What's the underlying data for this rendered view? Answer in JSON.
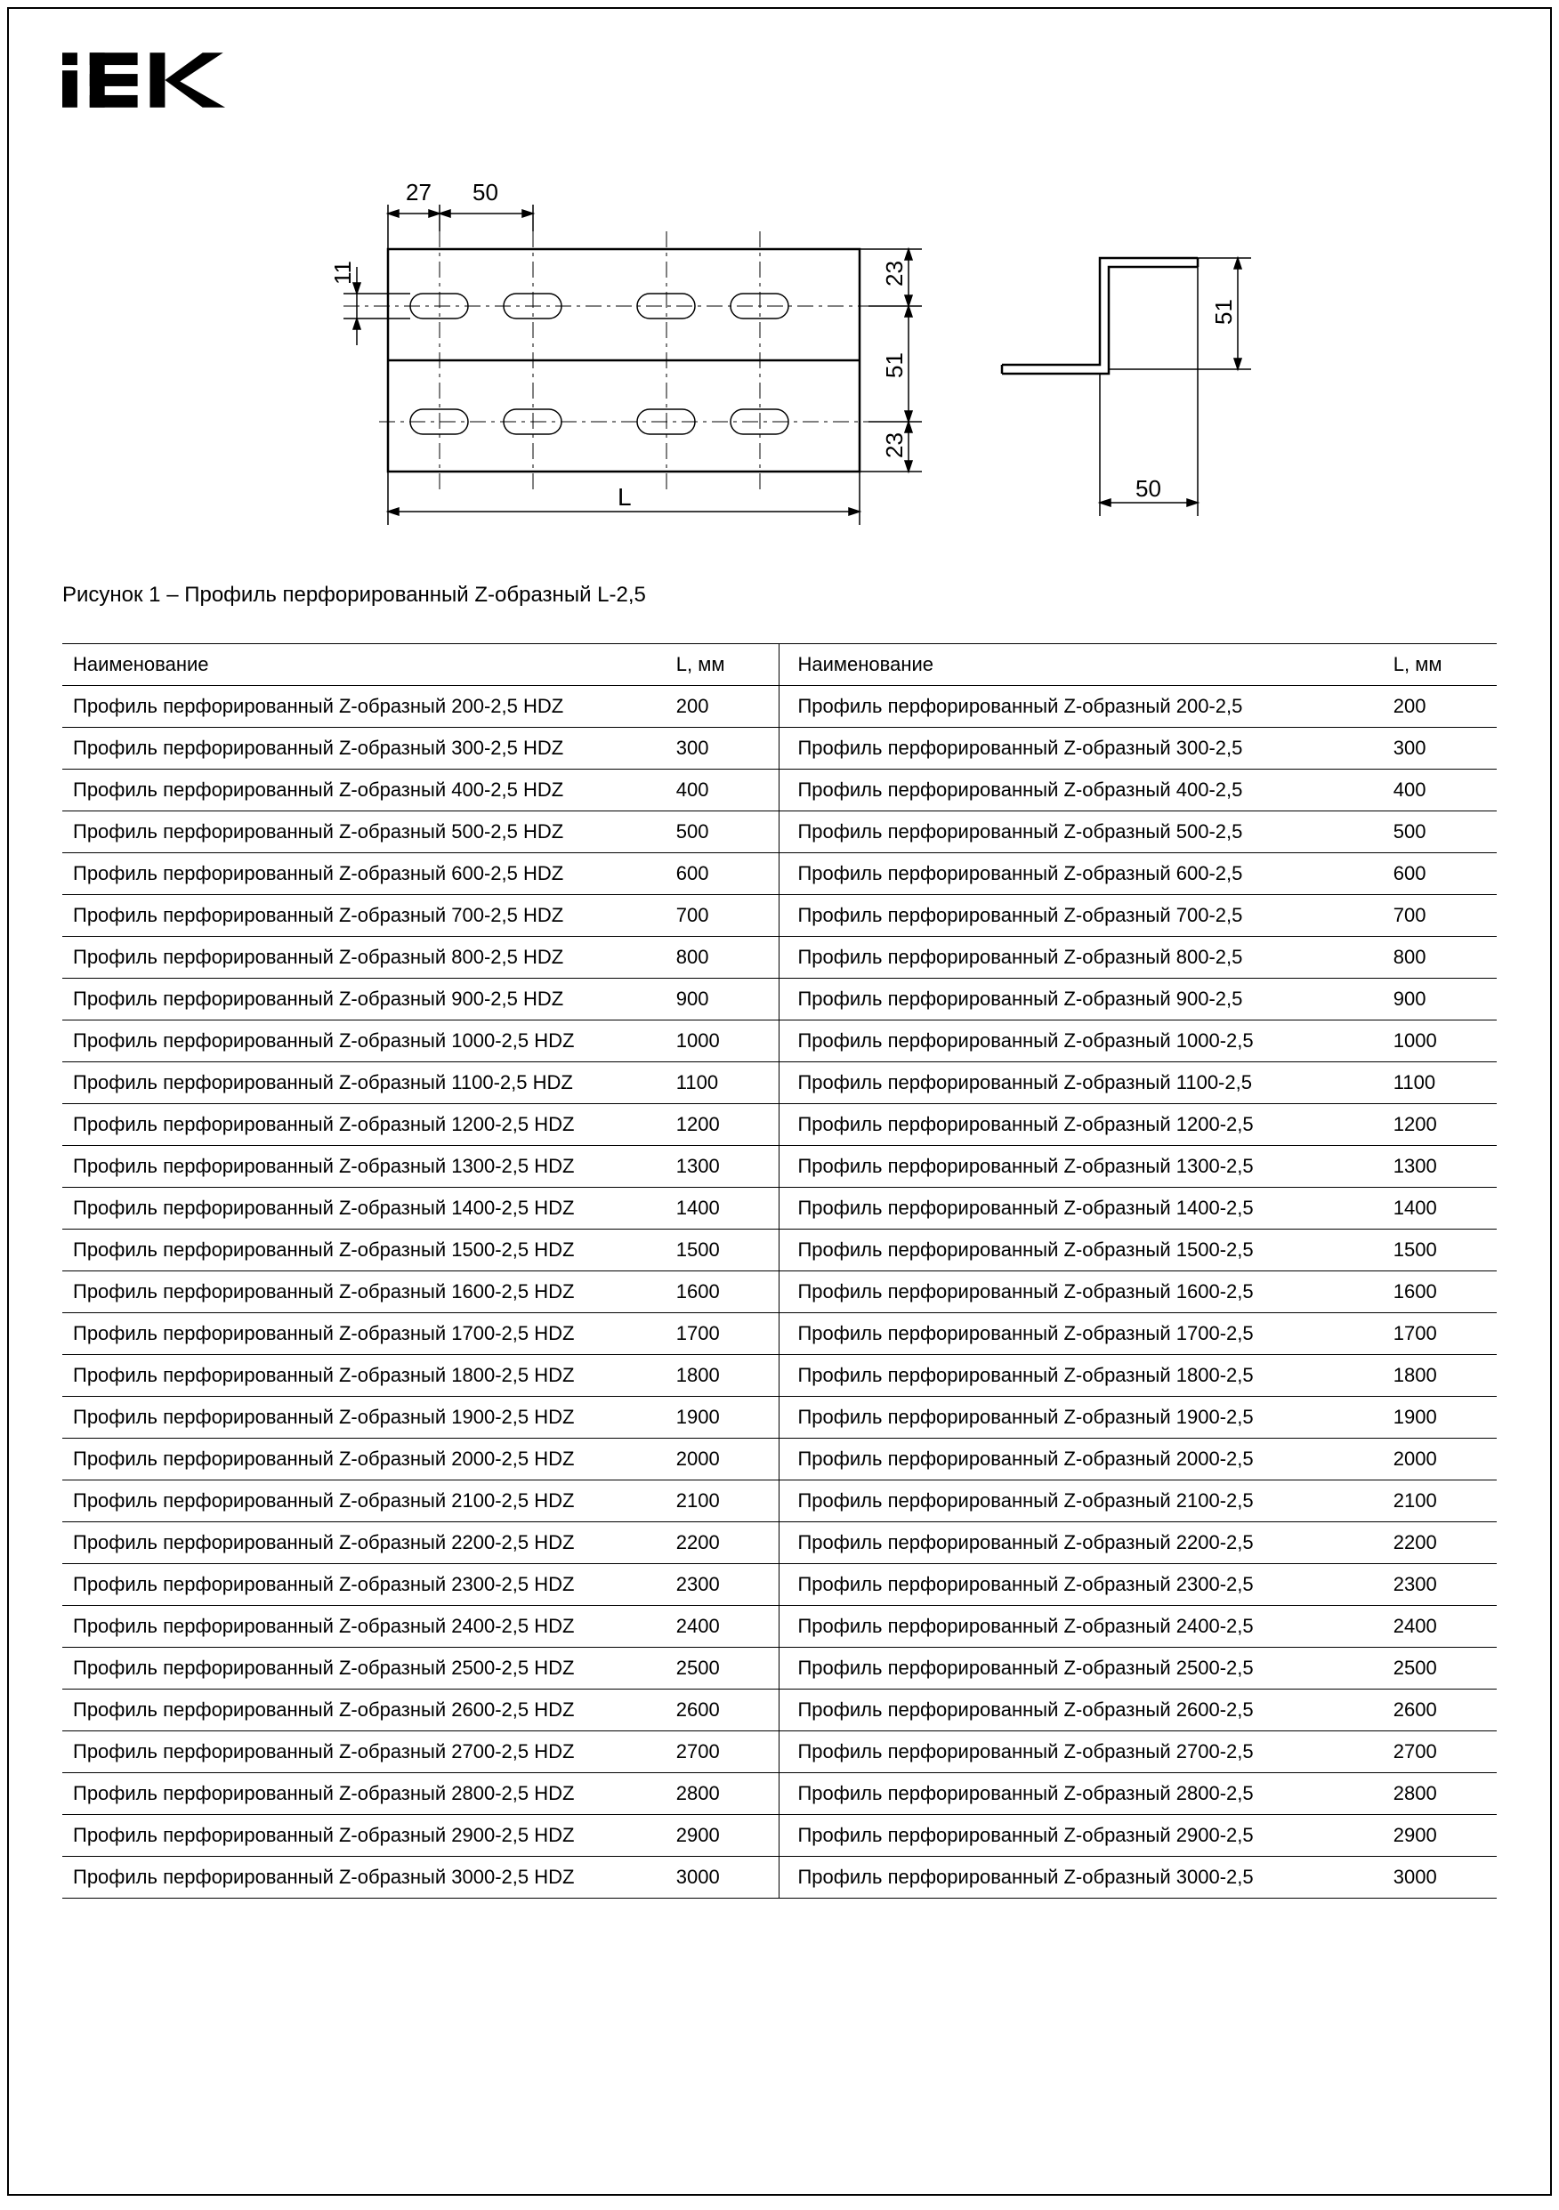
{
  "logo_text": "IEK",
  "caption": "Рисунок 1 – Профиль перфорированный Z-образный L-2,5",
  "drawing": {
    "stroke": "#000000",
    "stroke_thin": 1.5,
    "stroke_med": 2.5,
    "dims": {
      "d27": "27",
      "d50_top": "50",
      "d11": "11",
      "d23a": "23",
      "d23b": "23",
      "d51a": "51",
      "L": "L",
      "d51b": "51",
      "d50_side": "50"
    }
  },
  "table": {
    "headers": {
      "name": "Наименование",
      "L": "L, мм"
    },
    "name_prefix_left": "Профиль перфорированный Z-образный ",
    "name_suffix_left": "-2,5 HDZ",
    "name_prefix_right": "Профиль перфорированный Z-образный ",
    "name_suffix_right": "-2,5",
    "values": [
      200,
      300,
      400,
      500,
      600,
      700,
      800,
      900,
      1000,
      1100,
      1200,
      1300,
      1400,
      1500,
      1600,
      1700,
      1800,
      1900,
      2000,
      2100,
      2200,
      2300,
      2400,
      2500,
      2600,
      2700,
      2800,
      2900,
      3000
    ]
  }
}
